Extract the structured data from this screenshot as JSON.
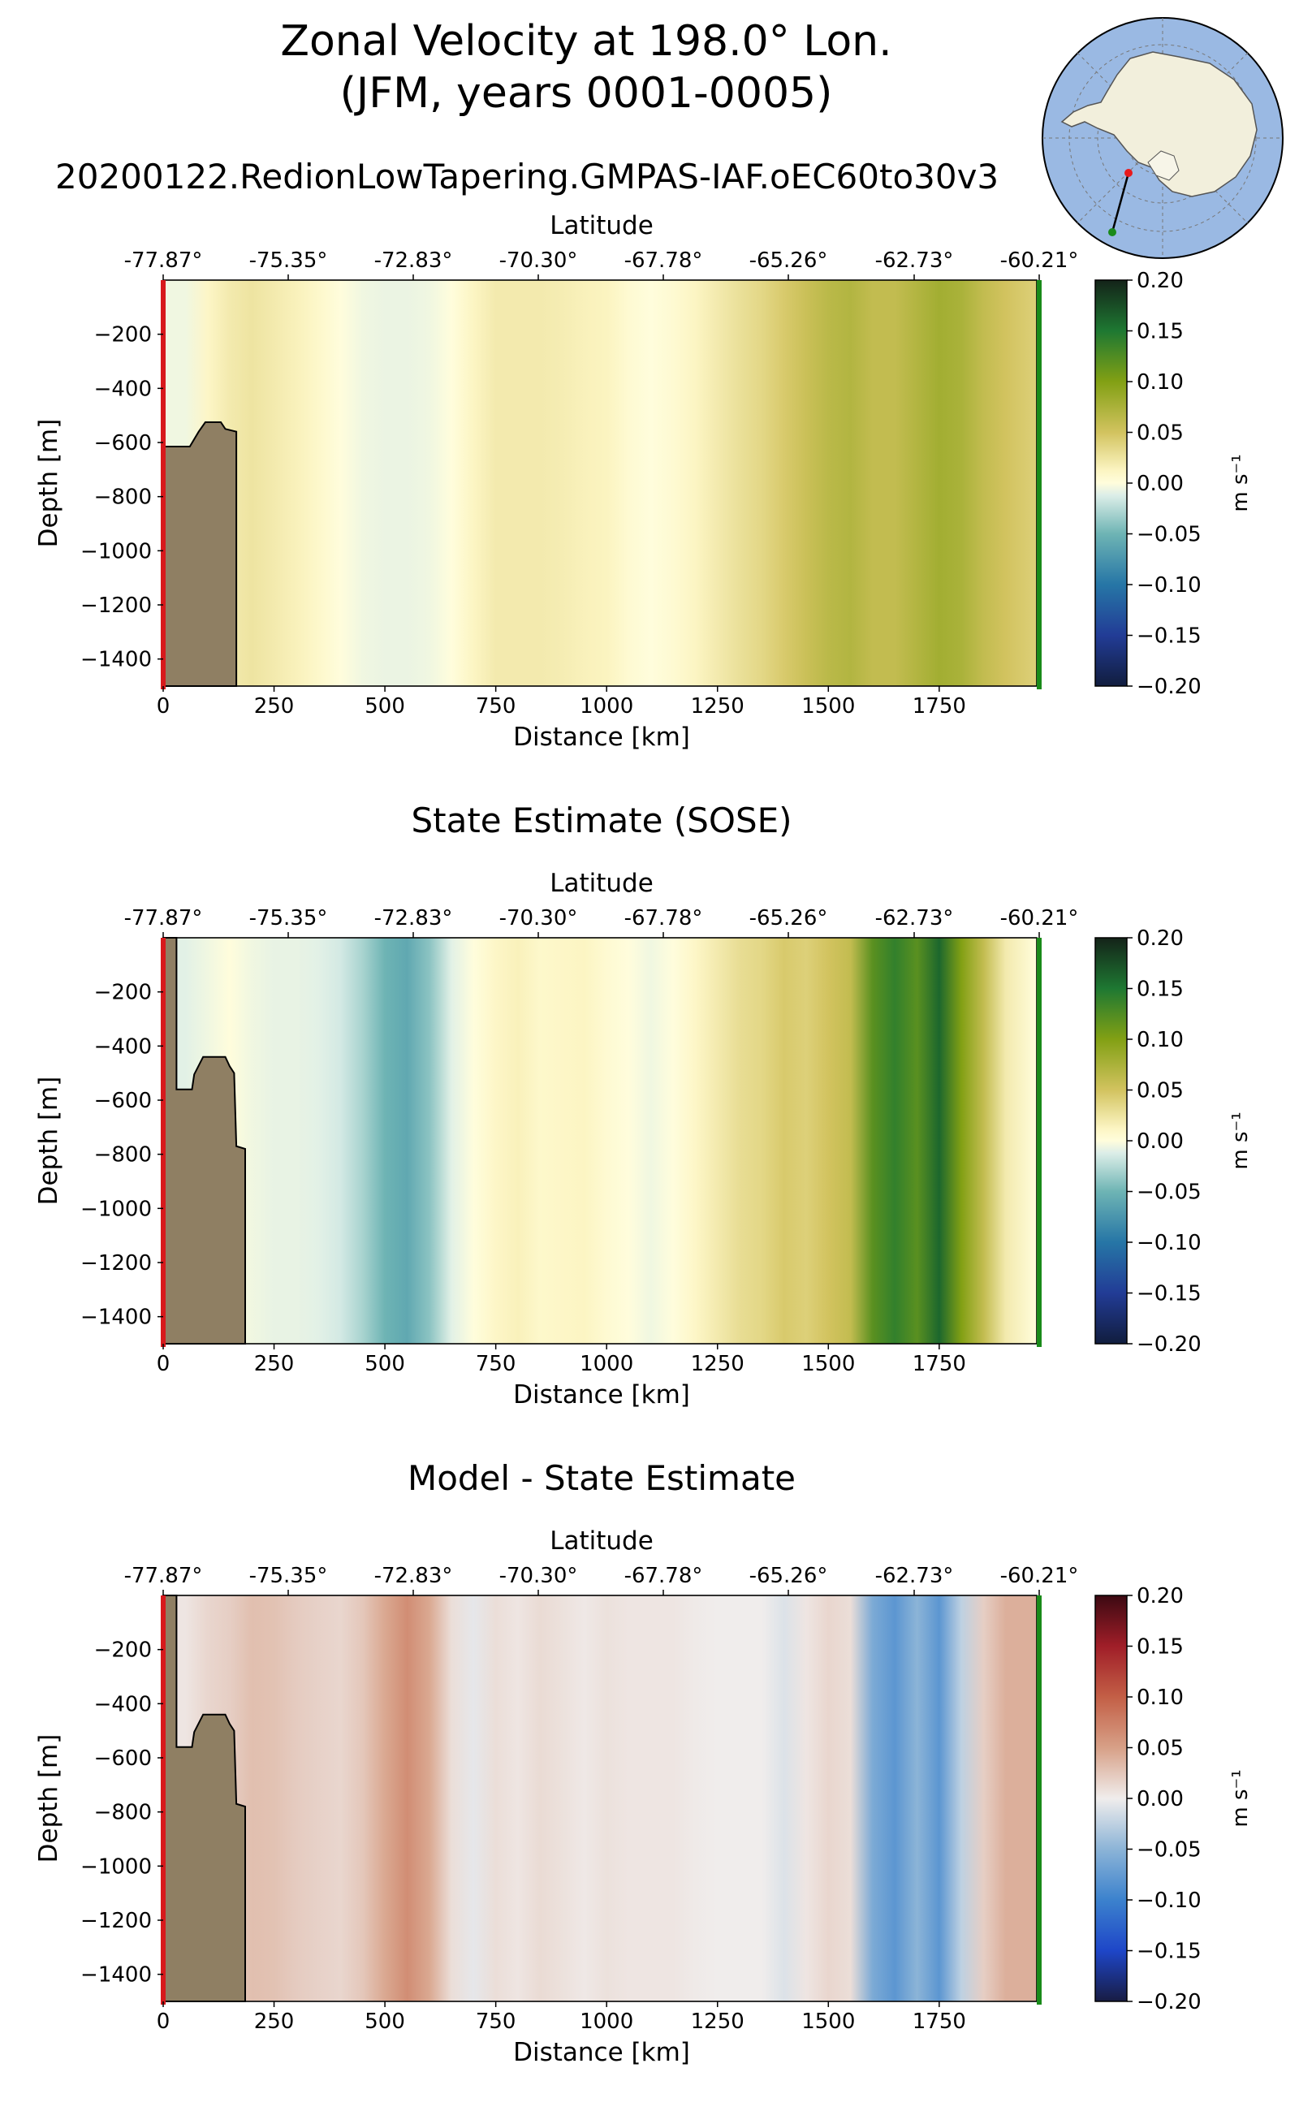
{
  "figure": {
    "title_line1": "Zonal Velocity at 198.0° Lon.",
    "title_line2": "(JFM, years 0001-0005)",
    "run_name": "20200122.RedionLowTapering.GMPAS-IAF.oEC60to30v3",
    "map_inset": {
      "start_marker_color": "#e8191c",
      "end_marker_color": "#1a8a1a",
      "ocean_color": "#9ab9e3",
      "land_color": "#f2efdc"
    }
  },
  "colors": {
    "topography": "#8f7f63",
    "start_line": "#d7191c",
    "end_line": "#1a8a1a"
  },
  "chart_data": [
    {
      "type": "heatmap",
      "title": "",
      "xlabel": "Distance [km]",
      "ylabel": "Depth [m]",
      "secondary_xlabel": "Latitude",
      "xlim": [
        0,
        1970
      ],
      "ylim": [
        -1500,
        0
      ],
      "xticks": [
        0,
        250,
        500,
        750,
        1000,
        1250,
        1500,
        1750
      ],
      "yticks": [
        -200,
        -400,
        -600,
        -800,
        -1000,
        -1200,
        -1400
      ],
      "lat_ticks": [
        "-77.87°",
        "-75.35°",
        "-72.83°",
        "-70.30°",
        "-67.78°",
        "-65.26°",
        "-62.73°",
        "-60.21°"
      ],
      "colorbar": {
        "label": "m s⁻¹",
        "vmin": -0.2,
        "vmax": 0.2,
        "ticks": [
          "0.20",
          "0.15",
          "0.10",
          "0.05",
          "0.00",
          "−0.05",
          "−0.10",
          "−0.15",
          "−0.20"
        ],
        "colormap": "delta"
      },
      "velocity_profile": {
        "distance_km": [
          0,
          50,
          100,
          150,
          200,
          250,
          300,
          350,
          400,
          450,
          500,
          550,
          600,
          650,
          700,
          750,
          800,
          850,
          900,
          950,
          1000,
          1050,
          1100,
          1150,
          1200,
          1250,
          1300,
          1350,
          1400,
          1450,
          1500,
          1550,
          1600,
          1650,
          1700,
          1750,
          1800,
          1850,
          1900,
          1970
        ],
        "velocity_m_s": [
          -0.005,
          -0.005,
          0.01,
          0.02,
          0.025,
          0.02,
          0.015,
          0.008,
          0.0,
          -0.005,
          -0.007,
          -0.007,
          -0.005,
          0.0,
          0.012,
          0.02,
          0.02,
          0.02,
          0.018,
          0.015,
          0.013,
          0.005,
          0.0,
          0.005,
          0.012,
          0.02,
          0.028,
          0.035,
          0.045,
          0.055,
          0.065,
          0.07,
          0.06,
          0.06,
          0.07,
          0.08,
          0.075,
          0.06,
          0.05,
          0.04
        ]
      },
      "bathymetry": {
        "distance_km": [
          0,
          40,
          60,
          80,
          95,
          130,
          140,
          165,
          165
        ],
        "depth_m": [
          -615,
          -615,
          -615,
          -560,
          -525,
          -525,
          -550,
          -560,
          -1500
        ]
      }
    },
    {
      "type": "heatmap",
      "title": "State Estimate (SOSE)",
      "xlabel": "Distance [km]",
      "ylabel": "Depth [m]",
      "secondary_xlabel": "Latitude",
      "xlim": [
        0,
        1970
      ],
      "ylim": [
        -1500,
        0
      ],
      "xticks": [
        0,
        250,
        500,
        750,
        1000,
        1250,
        1500,
        1750
      ],
      "yticks": [
        -200,
        -400,
        -600,
        -800,
        -1000,
        -1200,
        -1400
      ],
      "lat_ticks": [
        "-77.87°",
        "-75.35°",
        "-72.83°",
        "-70.30°",
        "-67.78°",
        "-65.26°",
        "-62.73°",
        "-60.21°"
      ],
      "colorbar": {
        "label": "m s⁻¹",
        "vmin": -0.2,
        "vmax": 0.2,
        "ticks": [
          "0.20",
          "0.15",
          "0.10",
          "0.05",
          "0.00",
          "−0.05",
          "−0.10",
          "−0.15",
          "−0.20"
        ],
        "colormap": "delta"
      },
      "velocity_profile": {
        "distance_km": [
          0,
          50,
          100,
          150,
          200,
          250,
          300,
          350,
          400,
          450,
          500,
          550,
          600,
          650,
          700,
          750,
          800,
          850,
          900,
          950,
          1000,
          1050,
          1100,
          1150,
          1200,
          1250,
          1300,
          1350,
          1400,
          1450,
          1500,
          1550,
          1600,
          1650,
          1700,
          1750,
          1800,
          1850,
          1900,
          1970
        ],
        "velocity_m_s": [
          -0.01,
          -0.01,
          -0.005,
          0.0,
          -0.005,
          -0.008,
          -0.008,
          -0.01,
          -0.015,
          -0.03,
          -0.05,
          -0.06,
          -0.04,
          -0.01,
          0.0,
          0.01,
          0.015,
          0.008,
          0.01,
          0.012,
          0.005,
          0.0,
          -0.005,
          0.0,
          0.01,
          0.02,
          0.03,
          0.035,
          0.045,
          0.04,
          0.05,
          0.06,
          0.12,
          0.14,
          0.12,
          0.16,
          0.1,
          0.06,
          0.02,
          0.0
        ]
      },
      "bathymetry": {
        "distance_km": [
          0,
          30,
          30,
          65,
          70,
          90,
          140,
          150,
          160,
          165,
          185,
          185
        ],
        "depth_m": [
          0,
          0,
          -560,
          -560,
          -505,
          -440,
          -440,
          -475,
          -500,
          -770,
          -780,
          -1500
        ]
      }
    },
    {
      "type": "heatmap",
      "title": "Model - State Estimate",
      "xlabel": "Distance [km]",
      "ylabel": "Depth [m]",
      "secondary_xlabel": "Latitude",
      "xlim": [
        0,
        1970
      ],
      "ylim": [
        -1500,
        0
      ],
      "xticks": [
        0,
        250,
        500,
        750,
        1000,
        1250,
        1500,
        1750
      ],
      "yticks": [
        -200,
        -400,
        -600,
        -800,
        -1000,
        -1200,
        -1400
      ],
      "lat_ticks": [
        "-77.87°",
        "-75.35°",
        "-72.83°",
        "-70.30°",
        "-67.78°",
        "-65.26°",
        "-62.73°",
        "-60.21°"
      ],
      "colorbar": {
        "label": "m s⁻¹",
        "vmin": -0.2,
        "vmax": 0.2,
        "ticks": [
          "0.20",
          "0.15",
          "0.10",
          "0.05",
          "0.00",
          "−0.05",
          "−0.10",
          "−0.15",
          "−0.20"
        ],
        "colormap": "balance"
      },
      "velocity_profile": {
        "distance_km": [
          0,
          50,
          100,
          150,
          200,
          250,
          300,
          350,
          400,
          450,
          500,
          550,
          600,
          650,
          700,
          750,
          800,
          850,
          900,
          950,
          1000,
          1050,
          1100,
          1150,
          1200,
          1250,
          1300,
          1350,
          1400,
          1450,
          1500,
          1550,
          1600,
          1650,
          1700,
          1750,
          1800,
          1850,
          1900,
          1970
        ],
        "velocity_m_s": [
          0.005,
          0.005,
          0.015,
          0.02,
          0.03,
          0.028,
          0.022,
          0.018,
          0.015,
          0.025,
          0.045,
          0.065,
          0.045,
          0.01,
          -0.005,
          0.01,
          0.005,
          0.012,
          0.008,
          0.003,
          0.008,
          0.005,
          0.005,
          0.005,
          0.002,
          0.0,
          0.0,
          0.0,
          -0.01,
          0.005,
          0.015,
          0.01,
          -0.06,
          -0.08,
          -0.05,
          -0.08,
          -0.025,
          0.02,
          0.04,
          0.04
        ]
      },
      "bathymetry": {
        "distance_km": [
          0,
          30,
          30,
          65,
          70,
          90,
          140,
          150,
          160,
          165,
          185,
          185
        ],
        "depth_m": [
          0,
          0,
          -560,
          -560,
          -505,
          -440,
          -440,
          -475,
          -500,
          -770,
          -780,
          -1500
        ]
      }
    }
  ]
}
